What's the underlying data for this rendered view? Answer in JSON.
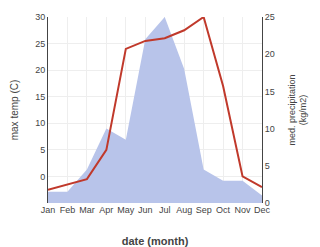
{
  "chart_data": {
    "type": "line",
    "categories": [
      "Jan",
      "Feb",
      "Mar",
      "Apr",
      "May",
      "Jun",
      "Jul",
      "Aug",
      "Sep",
      "Oct",
      "Nov",
      "Dec"
    ],
    "xlabel": "date (month)",
    "ylabel": "max temp (C)",
    "y2label": "med. precipitation\n(kg/m2)",
    "series": [
      {
        "type": "area",
        "axis": "y2",
        "color": "#b8c4ea",
        "values": [
          1.5,
          1.5,
          4.5,
          10.0,
          8.5,
          22.0,
          25.0,
          18.0,
          4.5,
          3.0,
          3.0,
          1.0
        ]
      },
      {
        "type": "line",
        "color": "#c0392b",
        "values": [
          -2.5,
          -1.5,
          -0.5,
          5.0,
          24.0,
          25.5,
          26.0,
          27.5,
          30.0,
          17.0,
          0.0,
          -2.0
        ]
      }
    ],
    "ylim": [
      -5,
      30
    ],
    "yticks": [
      0,
      5,
      10,
      15,
      20,
      25,
      30
    ],
    "y2lim": [
      0,
      25
    ],
    "y2ticks": [
      0,
      5,
      10,
      15,
      20,
      25
    ],
    "grid": true
  }
}
